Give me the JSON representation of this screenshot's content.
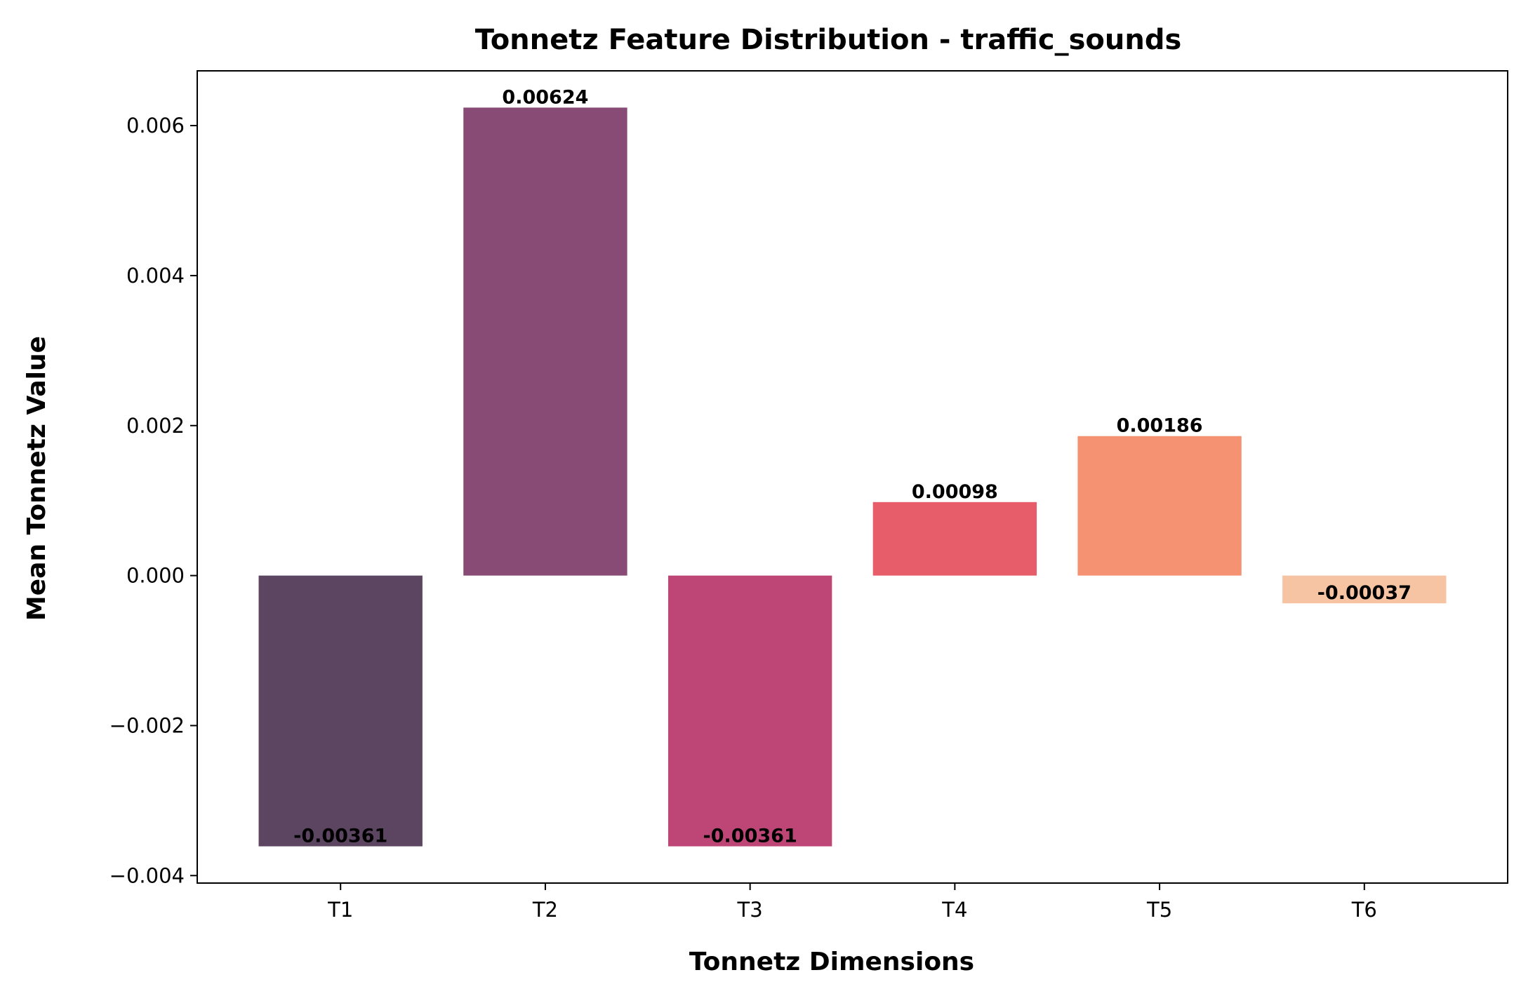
{
  "chart_data": {
    "type": "bar",
    "title": "Tonnetz Feature Distribution - traffic_sounds",
    "xlabel": "Tonnetz Dimensions",
    "ylabel": "Mean Tonnetz Value",
    "categories": [
      "T1",
      "T2",
      "T3",
      "T4",
      "T5",
      "T6"
    ],
    "values": [
      -0.00361,
      0.00624,
      -0.00361,
      0.00098,
      0.00186,
      -0.00037
    ],
    "value_labels": [
      "-0.00361",
      "0.00624",
      "-0.00361",
      "0.00098",
      "0.00186",
      "-0.00037"
    ],
    "colors": [
      "#5c4561",
      "#884b75",
      "#bd4676",
      "#e85d6a",
      "#f49272",
      "#f6c3a3"
    ],
    "ylim": [
      -0.0041,
      0.00673
    ],
    "yticks": [
      -0.004,
      -0.002,
      0.0,
      0.002,
      0.004,
      0.006
    ],
    "ytick_labels": [
      "−0.004",
      "−0.002",
      "0.000",
      "0.002",
      "0.004",
      "0.006"
    ],
    "grid": false,
    "legend": "none"
  }
}
